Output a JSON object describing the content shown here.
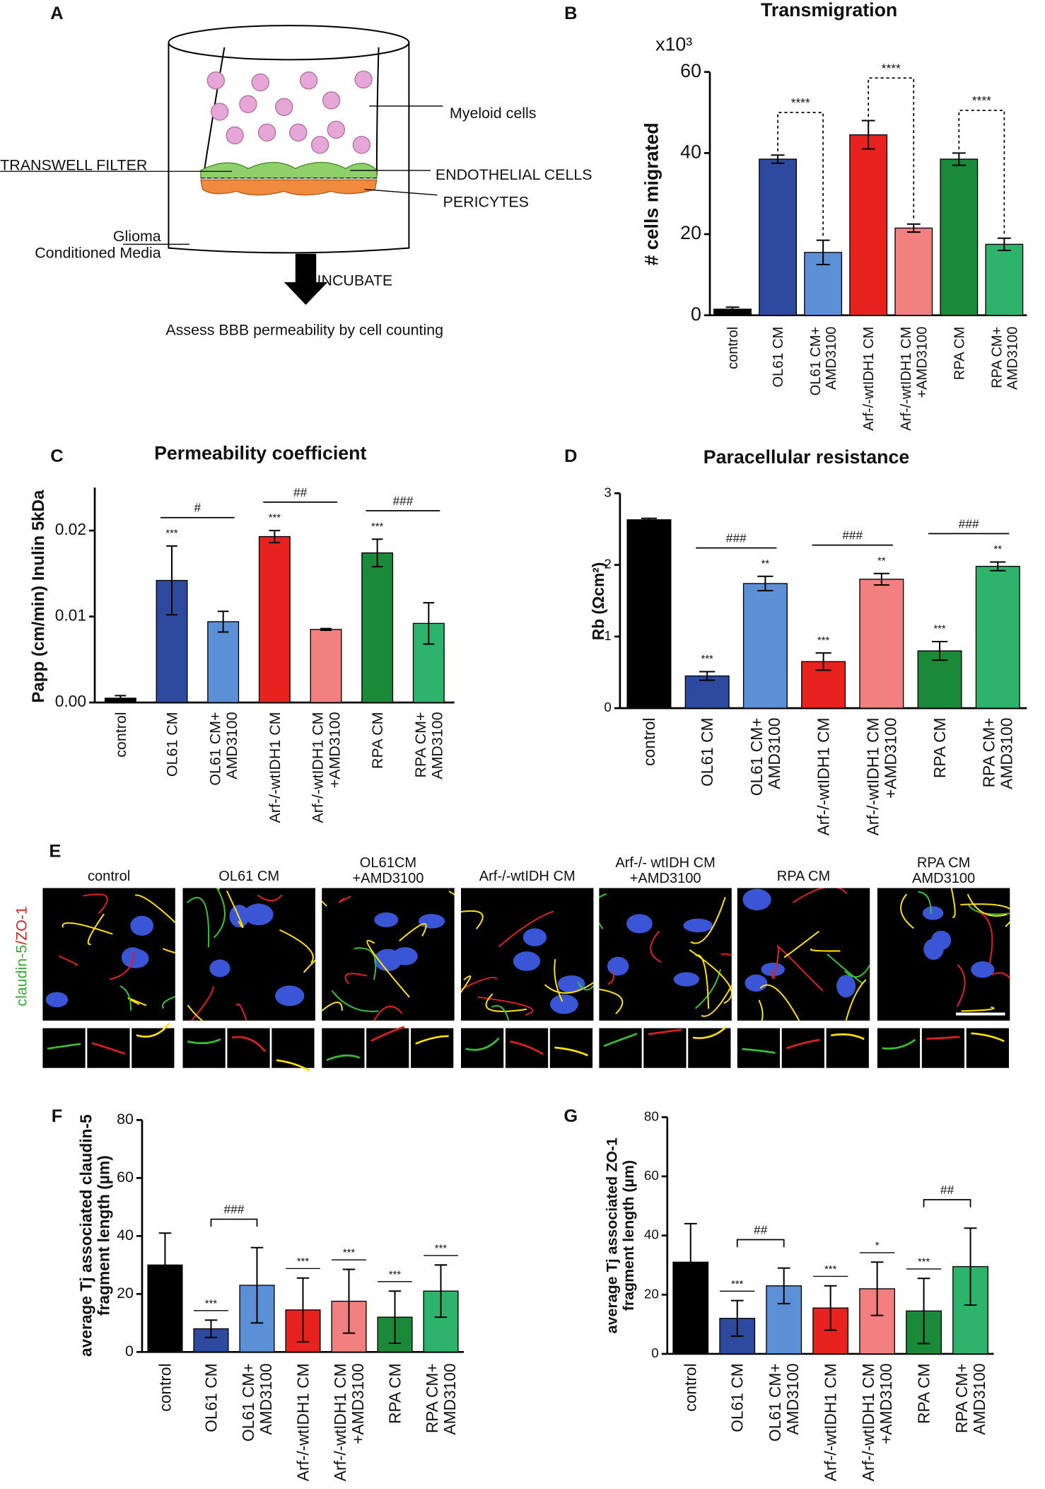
{
  "panel_labels": [
    "A",
    "B",
    "C",
    "D",
    "E",
    "F",
    "G"
  ],
  "diagram": {
    "labels": [
      "Myeloid cells",
      "TRANSWELL FILTER",
      "ENDOTHELIAL CELLS",
      "PERICYTES",
      "Glioma\nConditioned Media",
      "INCUBATE",
      "Assess BBB permeability by cell counting"
    ]
  },
  "chart_data": [
    {
      "type": "bar",
      "title": "Transmigration",
      "y_label": "# cells migrated",
      "y_multiplier": "x10³",
      "categories": [
        "control",
        "OL61 CM",
        "OL61 CM+\nAMD3100",
        "Arf-/-wtIDH1 CM",
        "Arf-/-wtIDH1 CM\n+AMD3100",
        "RPA CM",
        "RPA CM+\nAMD3100"
      ],
      "values": [
        1.5,
        38.5,
        15.5,
        44.5,
        21.5,
        38.5,
        17.5
      ],
      "errors": [
        0.5,
        1,
        3,
        3.5,
        1,
        1.5,
        1.5
      ],
      "colors": [
        "#000000",
        "#2e4a9e",
        "#5b8fd6",
        "#e8231f",
        "#f28080",
        "#1a8a3a",
        "#2db36b"
      ],
      "ylim": [
        0,
        60
      ],
      "yticks": [
        0,
        20,
        40,
        60
      ],
      "comparisons": [
        {
          "label": "****",
          "from": 1,
          "to": 2
        },
        {
          "label": "****",
          "from": 3,
          "to": 4
        },
        {
          "label": "****",
          "from": 5,
          "to": 6
        }
      ]
    },
    {
      "type": "bar",
      "title": "Permeability coefficient",
      "y_label": "Papp (cm/min) Inulin 5kDa",
      "categories": [
        "control",
        "OL61 CM",
        "OL61 CM+\nAMD3100",
        "Arf-/-wtIDH1 CM",
        "Arf-/-wtIDH1 CM\n+AMD3100",
        "RPA CM",
        "RPA CM+\nAMD3100"
      ],
      "values": [
        0.0005,
        0.0142,
        0.0094,
        0.0193,
        0.0085,
        0.0174,
        0.0092
      ],
      "errors": [
        0.0003,
        0.004,
        0.0012,
        0.0007,
        0.0001,
        0.0016,
        0.0024
      ],
      "colors": [
        "#000000",
        "#2e4a9e",
        "#5b8fd6",
        "#e8231f",
        "#f28080",
        "#1a8a3a",
        "#2db36b"
      ],
      "ylim": [
        0,
        0.025
      ],
      "yticks": [
        {
          "value": 0,
          "label": "0.00"
        },
        0.01,
        0.02
      ],
      "significance": [
        null,
        "***",
        null,
        "***",
        null,
        "***",
        null
      ],
      "comparisons": [
        {
          "label": "#",
          "from": 1,
          "to": 2
        },
        {
          "label": "##",
          "from": 3,
          "to": 4
        },
        {
          "label": "###",
          "from": 5,
          "to": 6
        }
      ]
    },
    {
      "type": "bar",
      "title": "Paracellular resistance",
      "y_label": "Rb (Ωcm²)",
      "categories": [
        "control",
        "OL61 CM",
        "OL61 CM+\nAMD3100",
        "Arf-/-wtIDH1 CM",
        "Arf-/-wtIDH1 CM\n+AMD3100",
        "RPA CM",
        "RPA CM+\nAMD3100"
      ],
      "values": [
        2.63,
        0.45,
        1.74,
        0.65,
        1.8,
        0.8,
        1.98
      ],
      "errors": [
        0.02,
        0.06,
        0.1,
        0.12,
        0.08,
        0.13,
        0.06
      ],
      "colors": [
        "#000000",
        "#2e4a9e",
        "#5b8fd6",
        "#e8231f",
        "#f28080",
        "#1a8a3a",
        "#2db36b"
      ],
      "ylim": [
        0,
        3
      ],
      "yticks": [
        0,
        1,
        2,
        3
      ],
      "significance": [
        null,
        "***",
        "**",
        "***",
        "**",
        "***",
        "**"
      ],
      "comparisons": [
        {
          "label": "###",
          "from": 1,
          "to": 2
        },
        {
          "label": "###",
          "from": 3,
          "to": 4
        },
        {
          "label": "###",
          "from": 5,
          "to": 6
        }
      ]
    },
    {
      "type": "bar",
      "y_label": "average Tj associated claudin-5\nfragment length (µm)",
      "categories": [
        "control",
        "OL61 CM",
        "OL61 CM+\nAMD3100",
        "Arf-/-wtIDH1 CM",
        "Arf-/-wtIDH1 CM\n+AMD3100",
        "RPA CM",
        "RPA CM+\nAMD3100"
      ],
      "values": [
        30,
        8,
        23,
        14.5,
        17.5,
        12,
        21
      ],
      "errors": [
        11,
        3,
        13,
        11,
        11,
        9,
        9
      ],
      "colors": [
        "#000000",
        "#2e4a9e",
        "#5b8fd6",
        "#e8231f",
        "#f28080",
        "#1a8a3a",
        "#2db36b"
      ],
      "ylim": [
        0,
        80
      ],
      "yticks": [
        0,
        20,
        40,
        60,
        80
      ],
      "significance": [
        null,
        "***",
        null,
        "***",
        "***",
        "***",
        "***"
      ],
      "comparisons": [
        {
          "label": "###",
          "from": 1,
          "to": 2
        }
      ]
    },
    {
      "type": "bar",
      "y_label": "average Tj associated ZO-1\nfragment length (µm)",
      "categories": [
        "control",
        "OL61 CM",
        "OL61 CM+\nAMD3100",
        "Arf-/-wtIDH1 CM",
        "Arf-/-wtIDH1 CM\n+AMD3100",
        "RPA CM",
        "RPA CM+\nAMD3100"
      ],
      "values": [
        31,
        12,
        23,
        15.5,
        22,
        14.5,
        29.5
      ],
      "errors": [
        13,
        6,
        6,
        7.5,
        9,
        11,
        13
      ],
      "colors": [
        "#000000",
        "#2e4a9e",
        "#5b8fd6",
        "#e8231f",
        "#f28080",
        "#1a8a3a",
        "#2db36b"
      ],
      "ylim": [
        0,
        80
      ],
      "yticks": [
        0,
        20,
        40,
        60,
        80
      ],
      "significance": [
        null,
        "***",
        null,
        "***",
        "*",
        "***",
        null
      ],
      "comparisons": [
        {
          "label": "##",
          "from": 1,
          "to": 2
        },
        {
          "label": "##",
          "from": 5,
          "to": 6
        }
      ]
    }
  ],
  "micrographs": {
    "stain": [
      "claudin-5",
      "/ZO-1"
    ],
    "columns": [
      "control",
      "OL61 CM",
      "OL61CM\n+AMD3100",
      "Arf-/-wtIDH CM",
      "Arf-/- wtIDH CM\n+AMD3100",
      "RPA CM",
      "RPA CM\nAMD3100"
    ]
  }
}
